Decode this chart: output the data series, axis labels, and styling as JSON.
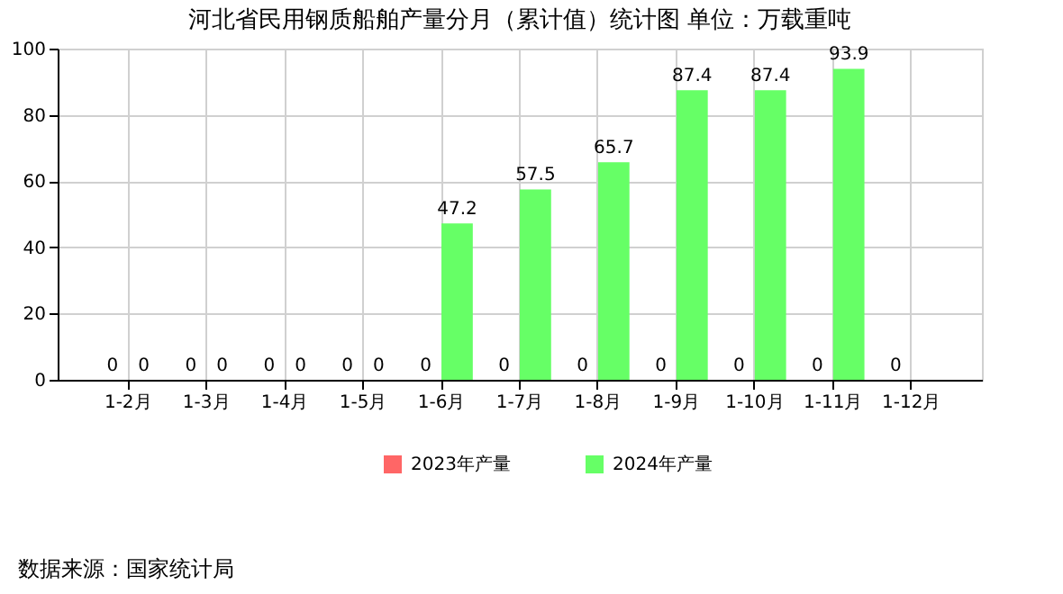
{
  "chart_data": {
    "type": "bar",
    "title": "河北省民用钢质船舶产量分月（累计值）统计图  单位：万载重吨",
    "categories": [
      "1-2月",
      "1-3月",
      "1-4月",
      "1-5月",
      "1-6月",
      "1-7月",
      "1-8月",
      "1-9月",
      "1-10月",
      "1-11月",
      "1-12月"
    ],
    "series": [
      {
        "name": "2023年产量",
        "color": "#ff6666",
        "values": [
          0,
          0,
          0,
          0,
          0,
          0,
          0,
          0,
          0,
          0,
          0
        ]
      },
      {
        "name": "2024年产量",
        "color": "#66ff66",
        "values": [
          0,
          0,
          0,
          0,
          47.2,
          57.5,
          65.7,
          87.4,
          87.4,
          93.9,
          null
        ]
      }
    ],
    "ylim": [
      0,
      100
    ],
    "yticks": [
      0,
      20,
      40,
      60,
      80,
      100
    ],
    "grid": true,
    "legend": "bottom",
    "data_labels": true,
    "annotations": [
      "数据来源：国家统计局"
    ]
  }
}
